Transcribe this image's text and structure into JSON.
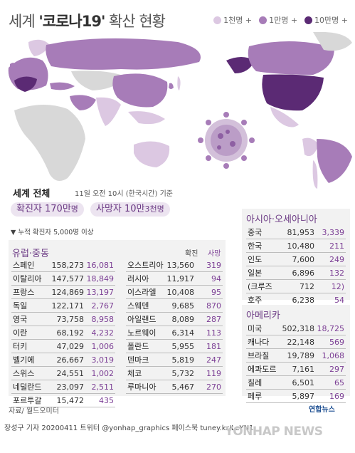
{
  "header": {
    "title_prefix": "세계 ",
    "title_bold": "'코로나19'",
    "title_suffix": " 확산 현황",
    "legend": [
      {
        "label": "1천명 +",
        "color": "#dcc8e2"
      },
      {
        "label": "1만명 +",
        "color": "#a77cb8"
      },
      {
        "label": "10만명 +",
        "color": "#5b2a74"
      }
    ]
  },
  "summary": {
    "title": "세계 전체",
    "date": "11일 오전 10시 (한국시간) 기준",
    "confirmed_label": "확진자 ",
    "confirmed_value": "170만",
    "confirmed_unit": "명",
    "deaths_label": "사망자 ",
    "deaths_value": "10만",
    "deaths_unit": "3천명"
  },
  "note": "▼ 누적 확진자 5,000명 이상",
  "europe": {
    "title": "유럽·중동",
    "col_confirmed": "확진",
    "col_deaths": "사망",
    "left": [
      {
        "name": "스페인",
        "confirmed": "158,273",
        "deaths": "16,081"
      },
      {
        "name": "이탈리아",
        "confirmed": "147,577",
        "deaths": "18,849"
      },
      {
        "name": "프랑스",
        "confirmed": "124,869",
        "deaths": "13,197"
      },
      {
        "name": "독일",
        "confirmed": "122,171",
        "deaths": "2,767"
      },
      {
        "name": "영국",
        "confirmed": "73,758",
        "deaths": "8,958"
      },
      {
        "name": "이란",
        "confirmed": "68,192",
        "deaths": "4,232"
      },
      {
        "name": "터키",
        "confirmed": "47,029",
        "deaths": "1,006"
      },
      {
        "name": "벨기에",
        "confirmed": "26,667",
        "deaths": "3,019"
      },
      {
        "name": "스위스",
        "confirmed": "24,551",
        "deaths": "1,002"
      },
      {
        "name": "네덜란드",
        "confirmed": "23,097",
        "deaths": "2,511"
      },
      {
        "name": "포르투갈",
        "confirmed": "15,472",
        "deaths": "435"
      }
    ],
    "right": [
      {
        "name": "오스트리아",
        "confirmed": "13,560",
        "deaths": "319"
      },
      {
        "name": "러시아",
        "confirmed": "11,917",
        "deaths": "94"
      },
      {
        "name": "이스라엘",
        "confirmed": "10,408",
        "deaths": "95"
      },
      {
        "name": "스웨덴",
        "confirmed": "9,685",
        "deaths": "870"
      },
      {
        "name": "아일랜드",
        "confirmed": "8,089",
        "deaths": "287"
      },
      {
        "name": "노르웨이",
        "confirmed": "6,314",
        "deaths": "113"
      },
      {
        "name": "폴란드",
        "confirmed": "5,955",
        "deaths": "181"
      },
      {
        "name": "덴마크",
        "confirmed": "5,819",
        "deaths": "247"
      },
      {
        "name": "체코",
        "confirmed": "5,732",
        "deaths": "119"
      },
      {
        "name": "루마니아",
        "confirmed": "5,467",
        "deaths": "270"
      }
    ]
  },
  "asia": {
    "title": "아시아·오세아니아",
    "rows": [
      {
        "name": "중국",
        "confirmed": "81,953",
        "deaths": "3,339"
      },
      {
        "name": "한국",
        "confirmed": "10,480",
        "deaths": "211"
      },
      {
        "name": "인도",
        "confirmed": "7,600",
        "deaths": "249"
      },
      {
        "name": "일본",
        "confirmed": "6,896",
        "deaths": "132"
      },
      {
        "name": "(크루즈",
        "confirmed": "712",
        "deaths": "12)"
      },
      {
        "name": "호주",
        "confirmed": "6,238",
        "deaths": "54"
      }
    ]
  },
  "america": {
    "title": "아메리카",
    "rows": [
      {
        "name": "미국",
        "confirmed": "502,318",
        "deaths": "18,725"
      },
      {
        "name": "캐나다",
        "confirmed": "22,148",
        "deaths": "569"
      },
      {
        "name": "브라질",
        "confirmed": "19,789",
        "deaths": "1,068"
      },
      {
        "name": "에콰도르",
        "confirmed": "7,161",
        "deaths": "297"
      },
      {
        "name": "칠레",
        "confirmed": "6,501",
        "deaths": "65"
      },
      {
        "name": "페루",
        "confirmed": "5,897",
        "deaths": "169"
      }
    ]
  },
  "source": "자료/ 월드오미터",
  "brand": "연합뉴스",
  "footer": "장성구 기자  20200411   트위터 @yonhap_graphics  페이스북 tuney.kr/LeYN1",
  "watermark": "YONHAP NEWS",
  "colors": {
    "accent": "#6b3a84",
    "death_text": "#7c3f95",
    "panel_bg": "#f2f2f2",
    "map_base": "#d8d8d8"
  }
}
